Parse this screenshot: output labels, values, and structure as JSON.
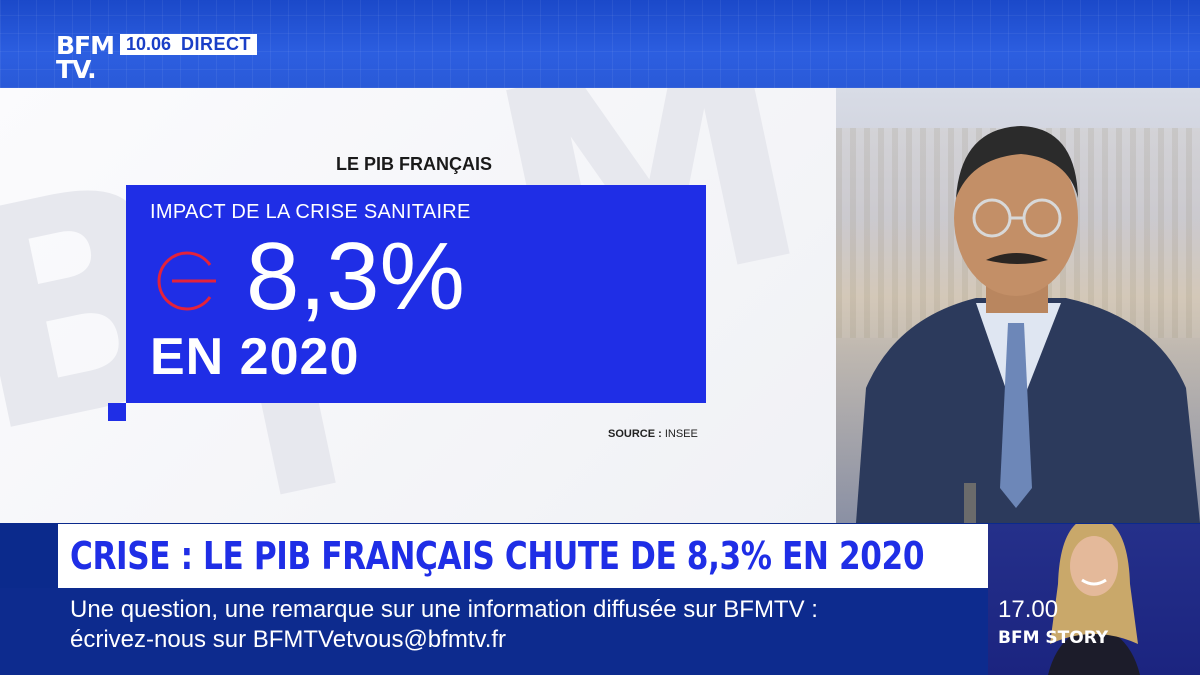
{
  "channel": {
    "logo_line1": "BFM",
    "logo_line2": "TV.",
    "time": "10.06",
    "live_label": "DIRECT"
  },
  "graphic": {
    "title": "LE PIB FRANÇAIS",
    "subtitle": "IMPACT DE LA CRISE SANITAIRE",
    "value": "8,3%",
    "year_label": "EN 2020",
    "source_label": "SOURCE :",
    "source_value": "INSEE"
  },
  "headline": "CRISE : LE PIB FRANÇAIS CHUTE DE 8,3% EN 2020",
  "ticker": {
    "line1": "Une question, une remarque sur une information diffusée sur BFMTV :",
    "line2": "écrivez-nous sur BFMTVetvous@bfmtv.fr"
  },
  "next_program": {
    "time": "17.00",
    "title": "BFM STORY"
  },
  "colors": {
    "brand_blue": "#1f2ee6",
    "ticker_bg": "#0d2b8e",
    "minus_red": "#e4223a",
    "headline_bg": "#ffffff"
  },
  "icons": {
    "minus": "minus-circle-icon"
  }
}
